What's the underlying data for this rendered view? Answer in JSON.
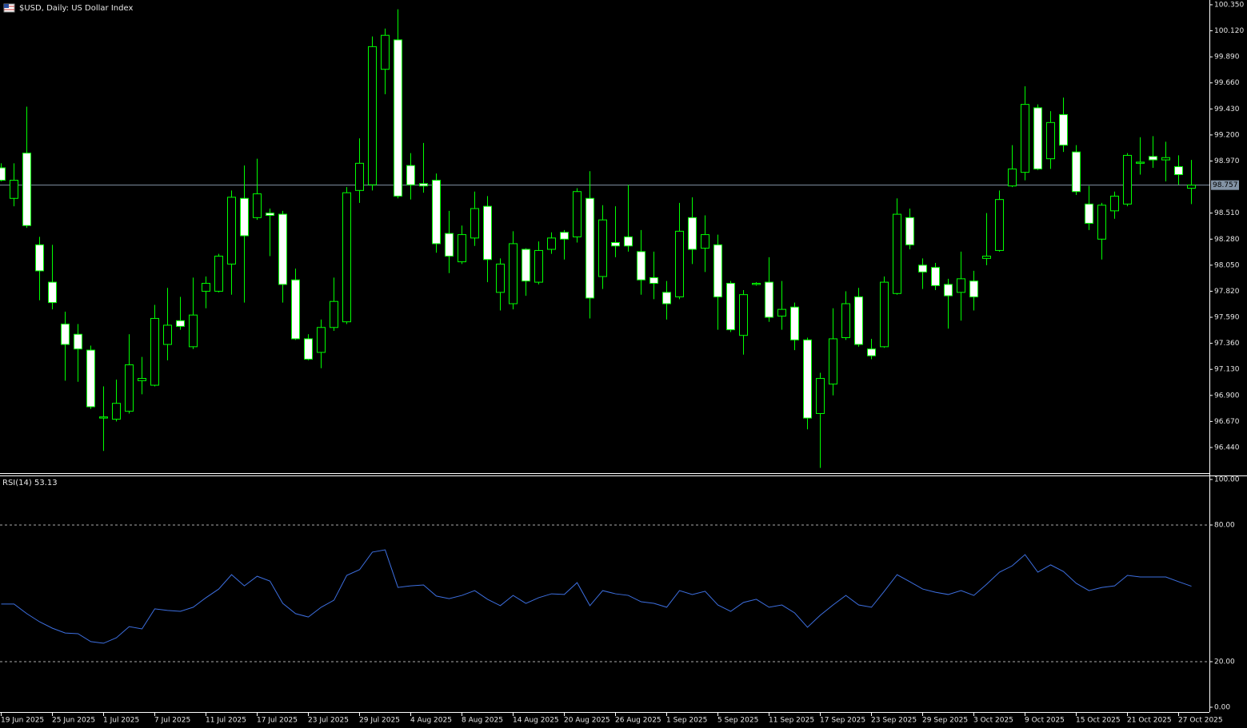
{
  "chart_data": [
    {
      "type": "candlestick",
      "title": "$USD, Daily:  US Dollar Index",
      "categories": [
        "19 Jun 2025",
        null,
        null,
        null,
        "25 Jun 2025",
        null,
        null,
        null,
        "1 Jul 2025",
        null,
        null,
        null,
        "7 Jul 2025",
        null,
        null,
        null,
        "11 Jul 2025",
        null,
        null,
        null,
        "17 Jul 2025",
        null,
        null,
        null,
        "23 Jul 2025",
        null,
        null,
        null,
        "29 Jul 2025",
        null,
        null,
        null,
        "4 Aug 2025",
        null,
        null,
        null,
        "8 Aug 2025",
        null,
        null,
        null,
        "14 Aug 2025",
        null,
        null,
        null,
        "20 Aug 2025",
        null,
        null,
        null,
        "26 Aug 2025",
        null,
        null,
        null,
        "1 Sep 2025",
        null,
        null,
        null,
        "5 Sep 2025",
        null,
        null,
        null,
        "11 Sep 2025",
        null,
        null,
        null,
        "17 Sep 2025",
        null,
        null,
        null,
        "23 Sep 2025",
        null,
        null,
        null,
        "29 Sep 2025",
        null,
        null,
        null,
        "3 Oct 2025",
        null,
        null,
        null,
        "9 Oct 2025",
        null,
        null,
        null,
        "15 Oct 2025",
        null,
        null,
        null,
        "21 Oct 2025",
        null,
        null,
        null,
        "27 Oct 2025",
        null
      ],
      "open": [
        98.91,
        98.64,
        99.04,
        98.23,
        97.9,
        97.53,
        97.44,
        97.3,
        96.7,
        96.69,
        96.76,
        97.03,
        96.99,
        97.35,
        97.56,
        97.33,
        97.82,
        97.82,
        98.06,
        98.64,
        98.47,
        98.51,
        98.5,
        97.92,
        97.4,
        97.28,
        97.5,
        97.55,
        98.71,
        98.76,
        99.78,
        100.04,
        98.93,
        98.77,
        98.8,
        98.33,
        98.08,
        98.29,
        98.57,
        97.81,
        97.71,
        98.19,
        97.9,
        98.19,
        98.34,
        98.3,
        98.64,
        97.95,
        98.25,
        98.3,
        98.17,
        97.94,
        97.81,
        97.77,
        98.47,
        98.2,
        98.23,
        97.89,
        97.43,
        97.88,
        97.9,
        97.6,
        97.68,
        97.39,
        96.74,
        97.0,
        97.41,
        97.77,
        97.31,
        97.33,
        97.8,
        98.47,
        98.05,
        98.03,
        97.88,
        97.81,
        97.91,
        98.11,
        98.18,
        98.75,
        98.87,
        99.44,
        98.99,
        99.38,
        99.05,
        98.59,
        98.28,
        98.53,
        98.59,
        98.95,
        99.01,
        98.98,
        98.92,
        98.73
      ],
      "high": [
        98.95,
        98.95,
        99.45,
        98.3,
        98.23,
        97.64,
        97.53,
        97.34,
        96.98,
        97.04,
        97.44,
        97.24,
        97.7,
        97.85,
        97.77,
        97.94,
        97.95,
        98.15,
        98.71,
        98.93,
        98.99,
        98.55,
        98.53,
        98.02,
        97.44,
        97.57,
        97.94,
        98.74,
        99.17,
        100.07,
        100.14,
        100.31,
        99.04,
        99.13,
        98.86,
        98.53,
        98.4,
        98.7,
        98.66,
        98.11,
        98.35,
        98.2,
        98.26,
        98.34,
        98.36,
        98.73,
        98.88,
        98.58,
        98.57,
        98.76,
        98.36,
        98.17,
        97.91,
        98.6,
        98.65,
        98.49,
        98.32,
        97.91,
        97.83,
        97.9,
        98.12,
        97.91,
        97.72,
        97.41,
        97.1,
        97.67,
        97.82,
        97.85,
        97.4,
        97.95,
        98.64,
        98.55,
        98.11,
        98.07,
        97.93,
        98.17,
        98.0,
        98.51,
        98.71,
        99.11,
        99.63,
        99.47,
        99.41,
        99.53,
        99.11,
        98.75,
        98.6,
        98.7,
        99.04,
        99.18,
        99.19,
        99.14,
        99.02,
        98.98
      ],
      "low": [
        98.79,
        98.57,
        98.38,
        97.74,
        97.66,
        97.03,
        97.02,
        96.78,
        96.41,
        96.67,
        96.74,
        96.91,
        96.98,
        97.21,
        97.48,
        97.31,
        97.67,
        97.81,
        97.79,
        97.72,
        98.45,
        98.13,
        97.72,
        97.39,
        97.21,
        97.14,
        97.47,
        97.53,
        98.6,
        98.71,
        99.56,
        98.64,
        98.63,
        98.69,
        98.16,
        97.98,
        98.06,
        98.22,
        97.9,
        97.65,
        97.66,
        97.78,
        97.88,
        98.15,
        98.1,
        98.25,
        97.58,
        97.84,
        98.12,
        98.17,
        97.79,
        97.75,
        97.57,
        97.75,
        98.06,
        97.99,
        97.48,
        97.46,
        97.26,
        97.87,
        97.55,
        97.48,
        97.3,
        96.6,
        96.26,
        96.9,
        97.39,
        97.33,
        97.22,
        97.32,
        97.79,
        98.19,
        97.84,
        97.83,
        97.49,
        97.56,
        97.65,
        98.05,
        98.17,
        98.74,
        98.8,
        98.89,
        98.9,
        99.05,
        98.67,
        98.36,
        98.1,
        98.46,
        98.57,
        98.85,
        98.91,
        98.79,
        98.76,
        98.59
      ],
      "close": [
        98.8,
        98.8,
        98.4,
        98.0,
        97.72,
        97.35,
        97.31,
        96.8,
        96.71,
        96.83,
        97.17,
        97.05,
        97.58,
        97.52,
        97.51,
        97.61,
        97.89,
        98.13,
        98.65,
        98.31,
        98.68,
        98.49,
        97.88,
        97.4,
        97.22,
        97.5,
        97.73,
        98.69,
        98.95,
        99.98,
        100.08,
        98.66,
        98.76,
        98.75,
        98.24,
        98.13,
        98.32,
        98.55,
        98.1,
        98.06,
        98.24,
        97.91,
        98.18,
        98.29,
        98.28,
        98.7,
        97.76,
        98.45,
        98.22,
        98.22,
        97.92,
        97.89,
        97.71,
        98.35,
        98.19,
        98.32,
        97.77,
        97.48,
        97.79,
        97.89,
        97.59,
        97.66,
        97.39,
        96.7,
        97.05,
        97.4,
        97.71,
        97.35,
        97.25,
        97.9,
        98.5,
        98.23,
        97.99,
        97.87,
        97.78,
        97.93,
        97.77,
        98.13,
        98.63,
        98.9,
        99.47,
        98.9,
        99.31,
        99.11,
        98.7,
        98.42,
        98.58,
        98.66,
        99.02,
        98.96,
        98.98,
        99.0,
        98.85,
        98.757
      ],
      "current_price": 98.757,
      "ylim": [
        96.214,
        100.392
      ],
      "yticks": [
        {
          "value": 100.35,
          "label": "100.350"
        },
        {
          "value": 100.12,
          "label": "100.120"
        },
        {
          "value": 99.89,
          "label": "99.890"
        },
        {
          "value": 99.66,
          "label": "99.660"
        },
        {
          "value": 99.43,
          "label": "99.430"
        },
        {
          "value": 99.2,
          "label": "99.200"
        },
        {
          "value": 98.97,
          "label": "98.970"
        },
        {
          "value": 98.51,
          "label": "98.510"
        },
        {
          "value": 98.28,
          "label": "98.280"
        },
        {
          "value": 98.05,
          "label": "98.050"
        },
        {
          "value": 97.82,
          "label": "97.820"
        },
        {
          "value": 97.59,
          "label": "97.590"
        },
        {
          "value": 97.36,
          "label": "97.360"
        },
        {
          "value": 97.13,
          "label": "97.130"
        },
        {
          "value": 96.9,
          "label": "96.900"
        },
        {
          "value": 96.67,
          "label": "96.670"
        },
        {
          "value": 96.44,
          "label": "96.440"
        }
      ],
      "up_color": "#00ff00",
      "down_color": "#ffffff",
      "price_line_color": "#8393a5"
    },
    {
      "type": "line",
      "title": "RSI(14) 53.13",
      "color": "#3d6fe0",
      "values": [
        45.3,
        45.3,
        41.1,
        37.5,
        34.7,
        32.6,
        32.3,
        28.8,
        28.1,
        30.5,
        35.4,
        34.4,
        43.2,
        42.5,
        42.1,
        43.9,
        48.1,
        51.9,
        58.2,
        53.3,
        57.5,
        55.4,
        45.6,
        41.1,
        39.6,
        43.9,
        47.0,
        57.9,
        60.4,
        68.1,
        69.1,
        52.6,
        53.3,
        53.7,
        48.8,
        47.7,
        49.1,
        51.2,
        47.4,
        44.6,
        49.1,
        45.6,
        48.1,
        49.8,
        49.5,
        54.7,
        44.6,
        51.2,
        49.8,
        49.1,
        46.3,
        45.6,
        43.9,
        51.2,
        49.5,
        50.9,
        44.9,
        42.1,
        46.0,
        47.4,
        43.9,
        44.9,
        41.4,
        35.1,
        40.4,
        44.9,
        49.1,
        44.9,
        43.9,
        50.9,
        58.2,
        55.1,
        51.9,
        50.5,
        49.5,
        51.2,
        49.1,
        54.0,
        59.3,
        62.1,
        67.0,
        59.3,
        62.5,
        59.6,
        54.4,
        51.2,
        52.6,
        53.3,
        57.9,
        57.2,
        57.2,
        57.2,
        55.1,
        53.13
      ],
      "ylim": [
        0,
        100
      ],
      "yticks": [
        {
          "value": 100,
          "label": "100.00"
        },
        {
          "value": 80,
          "label": "80.00"
        },
        {
          "value": 20,
          "label": "20.00"
        },
        {
          "value": 0,
          "label": "0.00"
        }
      ],
      "levels": [
        80,
        20
      ]
    }
  ]
}
